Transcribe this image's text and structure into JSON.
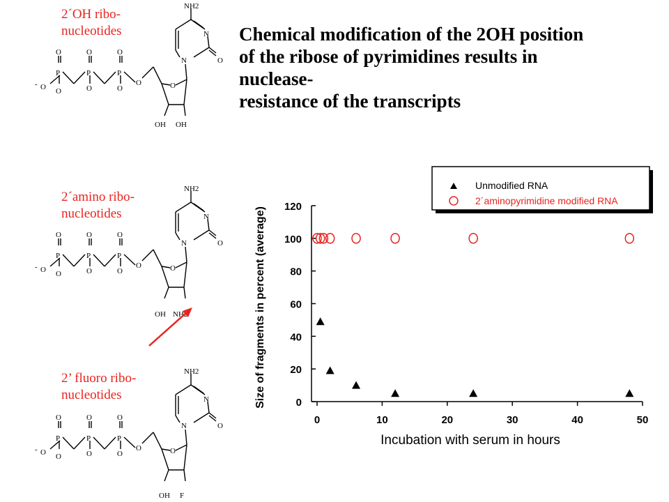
{
  "title": {
    "lines": [
      "Chemical modification of the 2OH position",
      "of the ribose of pyrimidines results in",
      "nuclease-",
      "resistance of the transcripts"
    ]
  },
  "molecules": [
    {
      "label_line1": "2´OH ribo-",
      "label_line2": "nucleotides",
      "substituent_left": "OH",
      "substituent_right": "OH",
      "base_amine": "NH2",
      "phosphate_O": "O",
      "ring_N": "N",
      "base_O": "O"
    },
    {
      "label_line1": "2´amino ribo-",
      "label_line2": "nucleotides",
      "substituent_left": "OH",
      "substituent_right": "NH2",
      "base_amine": "NH2",
      "phosphate_O": "O",
      "ring_N": "N",
      "base_O": "O"
    },
    {
      "label_line1": "2’ fluoro ribo-",
      "label_line2": "nucleotides",
      "substituent_left": "OH",
      "substituent_right": "F",
      "base_amine": "NH2",
      "phosphate_O": "O",
      "ring_N": "N",
      "base_O": "O"
    }
  ],
  "phosphorus": "P",
  "colors": {
    "label": "#e8231f",
    "arrow": "#e8231f",
    "modified_series": "#e8231f",
    "unmodified_series": "#000000",
    "text": "#000000"
  },
  "chart_data": {
    "type": "scatter",
    "xlabel": "Incubation with serum in hours",
    "ylabel": "Size of fragments in percent (average)",
    "xlim": [
      0,
      50
    ],
    "ylim": [
      0,
      120
    ],
    "x_ticks": [
      0,
      10,
      20,
      30,
      40,
      50
    ],
    "y_ticks": [
      0,
      20,
      40,
      60,
      80,
      100,
      120
    ],
    "grid": false,
    "legend_position": "top-right",
    "series": [
      {
        "name": "Unmodified RNA",
        "marker": "filled-triangle",
        "points": [
          [
            0.5,
            49
          ],
          [
            2,
            19
          ],
          [
            6,
            10
          ],
          [
            12,
            5
          ],
          [
            24,
            5
          ],
          [
            48,
            5
          ]
        ]
      },
      {
        "name": "2´aminopyrimidine modified RNA",
        "marker": "open-circle",
        "points": [
          [
            0,
            100
          ],
          [
            0.5,
            100
          ],
          [
            1,
            100
          ],
          [
            2,
            100
          ],
          [
            6,
            100
          ],
          [
            12,
            100
          ],
          [
            24,
            100
          ],
          [
            48,
            100
          ]
        ]
      }
    ]
  }
}
